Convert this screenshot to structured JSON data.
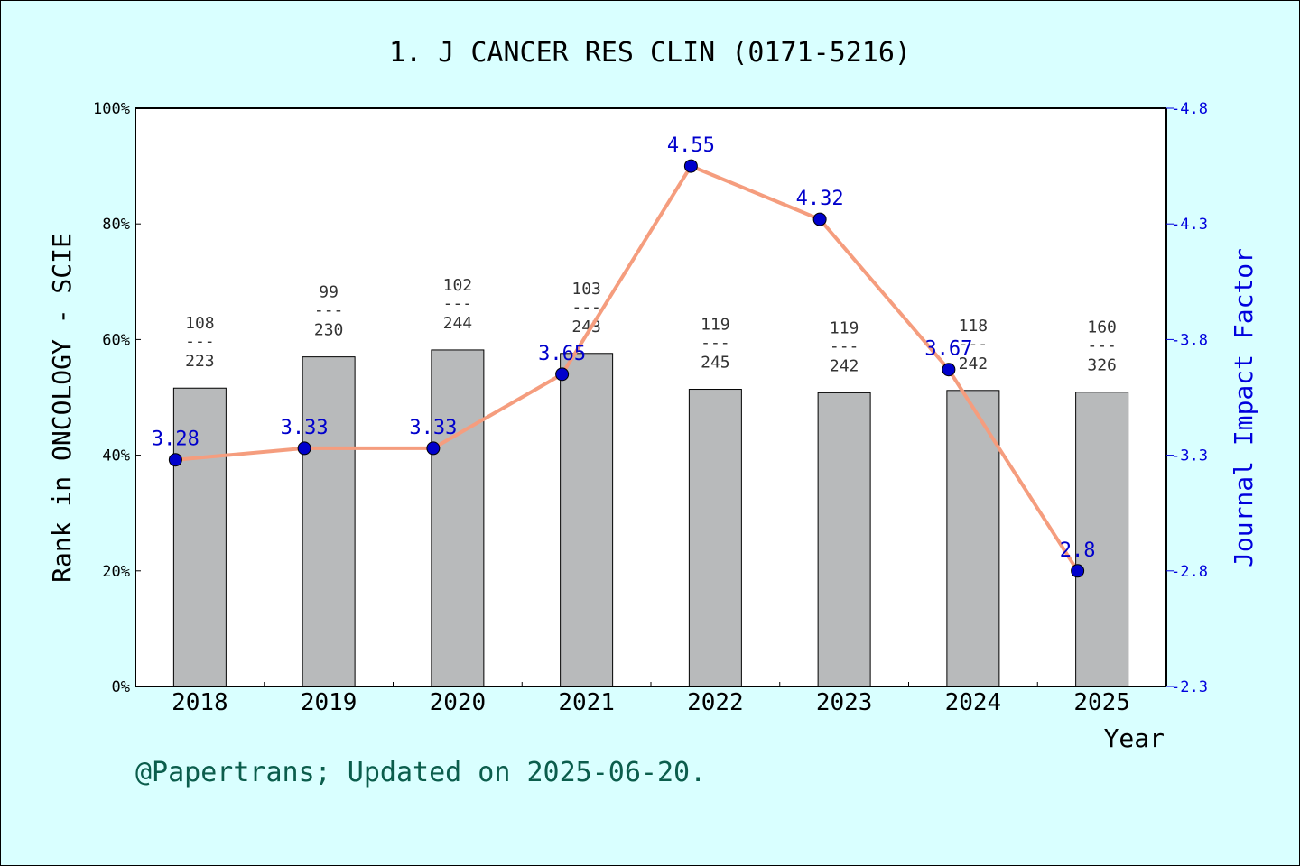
{
  "chart_data": {
    "type": "bar+line",
    "title": "1. J CANCER RES CLIN (0171-5216)",
    "xlabel": "Year",
    "ylabel_left": "Rank in ONCOLOGY - SCIE",
    "ylabel_right": "Journal Impact Factor",
    "categories": [
      "2018",
      "2019",
      "2020",
      "2021",
      "2022",
      "2023",
      "2024",
      "2025"
    ],
    "left_ticks": [
      "0%",
      "20%",
      "40%",
      "60%",
      "80%",
      "100%"
    ],
    "right_ticks": [
      "2.3",
      "2.8",
      "3.3",
      "3.8",
      "4.3",
      "4.8"
    ],
    "ylim_left": [
      0,
      100
    ],
    "ylim_right": [
      2.3,
      4.8
    ],
    "bar_values_percent": [
      51.6,
      57.0,
      58.2,
      57.6,
      51.4,
      50.8,
      51.2,
      50.9
    ],
    "bar_labels": [
      {
        "rank": "108",
        "sep": "---",
        "total": "223"
      },
      {
        "rank": "99",
        "sep": "---",
        "total": "230"
      },
      {
        "rank": "102",
        "sep": "---",
        "total": "244"
      },
      {
        "rank": "103",
        "sep": "---",
        "total": "243"
      },
      {
        "rank": "119",
        "sep": "---",
        "total": "245"
      },
      {
        "rank": "119",
        "sep": "---",
        "total": "242"
      },
      {
        "rank": "118",
        "sep": "---",
        "total": "242"
      },
      {
        "rank": "160",
        "sep": "---",
        "total": "326"
      }
    ],
    "impact_factor_values": [
      3.28,
      3.33,
      3.33,
      3.65,
      4.55,
      4.32,
      3.67,
      2.8
    ],
    "impact_factor_labels": [
      "3.28",
      "3.33",
      "3.33",
      "3.65",
      "4.55",
      "4.32",
      "3.67",
      "2.8"
    ],
    "colors": {
      "background": "#d9ffff",
      "plot_background": "#ffffff",
      "bar": "#b8babb",
      "line": "#f59d7e",
      "marker": "#0000cc",
      "right_axis": "#0000dd"
    },
    "grid": false
  },
  "footer": "@Papertrans; Updated on 2025-06-20."
}
